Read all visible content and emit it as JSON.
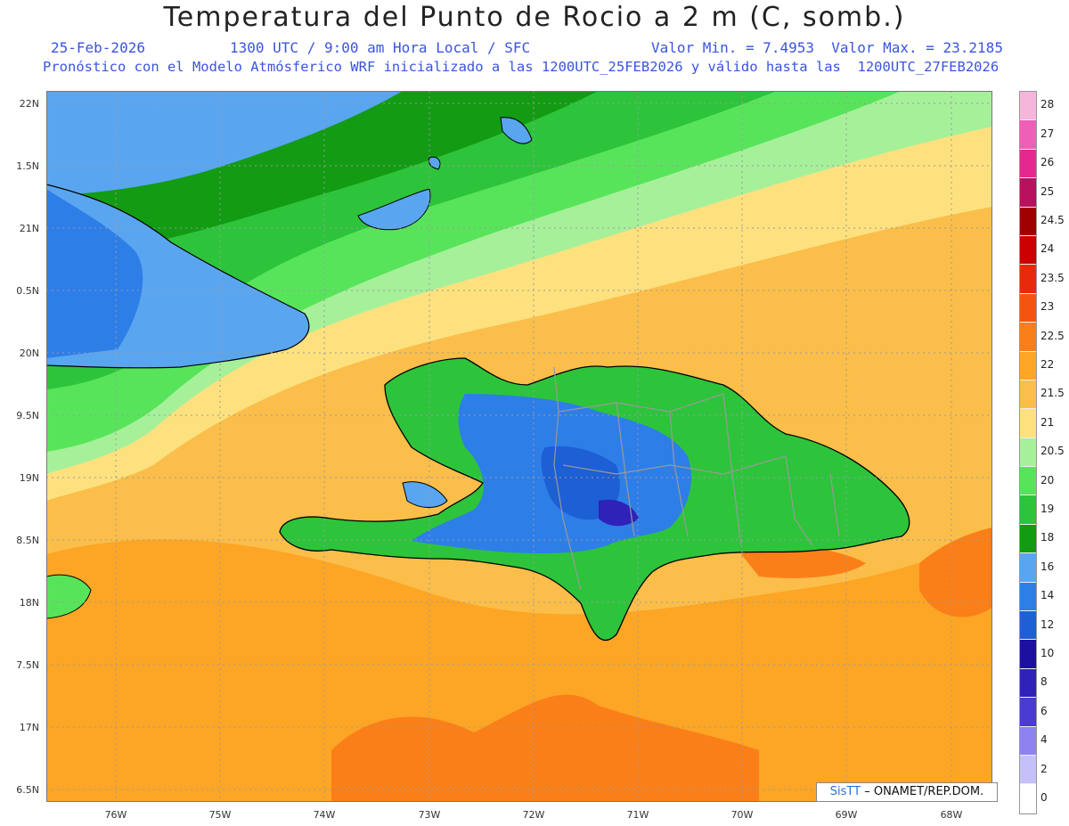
{
  "header": {
    "title": "Temperatura del Punto de Rocio a 2 m (C, somb.)",
    "date": "25-Feb-2026",
    "time": "1300 UTC / 9:00 am Hora Local / SFC",
    "minmax": "Valor Min. = 7.4953  Valor Max. = 23.2185",
    "model_info": "Pronóstico con el Modelo Atmósferico WRF inicializado a las 1200UTC_25FEB2026 y válido hasta las  1200UTC_27FEB2026"
  },
  "axes": {
    "lat_labels": [
      "22N",
      "1.5N",
      "21N",
      "0.5N",
      "20N",
      "9.5N",
      "19N",
      "8.5N",
      "18N",
      "7.5N",
      "17N",
      "6.5N"
    ],
    "lon_labels": [
      "76W",
      "75W",
      "74W",
      "73W",
      "72W",
      "71W",
      "70W",
      "69W",
      "68W"
    ]
  },
  "legend": {
    "labels": [
      "28",
      "27",
      "26",
      "25",
      "24.5",
      "24",
      "23.5",
      "23",
      "22.5",
      "22",
      "21.5",
      "21",
      "20.5",
      "20",
      "19",
      "18",
      "16",
      "14",
      "12",
      "10",
      "8",
      "6",
      "4",
      "2",
      "0"
    ],
    "colors": [
      "#f6b6dc",
      "#ee5fb8",
      "#e5288f",
      "#b8115d",
      "#a00000",
      "#cc0000",
      "#e82a0a",
      "#f55410",
      "#fb7f18",
      "#fda525",
      "#fbbe4a",
      "#fde17e",
      "#a6f09a",
      "#58e45a",
      "#2dc43b",
      "#139b14",
      "#5aa5f0",
      "#2e7ee8",
      "#1d5fd4",
      "#1b10a0",
      "#2e22b8",
      "#4a3cd0",
      "#8d82f0",
      "#c6c0f8",
      "#ffffff"
    ]
  },
  "credit": {
    "brand": "SisTT",
    "text": "– ONAMET/REP.DOM."
  }
}
